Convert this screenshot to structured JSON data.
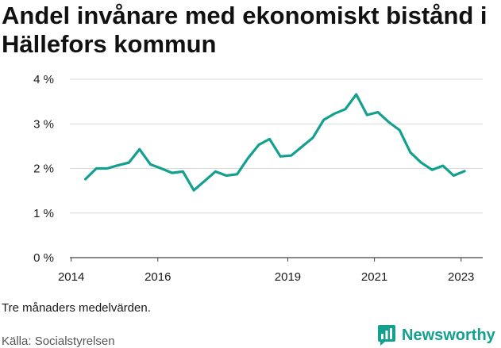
{
  "title": "Andel invånare med ekonomiskt bistånd i Hällefors kommun",
  "note": "Tre månaders medelvärden.",
  "source": "Källa: Socialstyrelsen",
  "brand": {
    "name": "Newsworthy",
    "color": "#13a08e"
  },
  "chart_data": {
    "type": "line",
    "title": "Andel invånare med ekonomiskt bistånd i Hällefors kommun",
    "xlabel": "",
    "ylabel": "",
    "ylim": [
      0,
      4
    ],
    "xlim": [
      2013.97,
      2023.5
    ],
    "y_ticks": [
      0,
      1,
      2,
      3,
      4
    ],
    "y_tick_labels": [
      "0 %",
      "1 %",
      "2 %",
      "3 %",
      "4 %"
    ],
    "x_ticks": [
      2014,
      2016,
      2019,
      2021,
      2023
    ],
    "x_tick_labels": [
      "2014",
      "2016",
      "2019",
      "2021",
      "2023"
    ],
    "grid": true,
    "line_color": "#13a08e",
    "x": [
      2014.33,
      2014.58,
      2014.83,
      2015.08,
      2015.33,
      2015.58,
      2015.83,
      2016.08,
      2016.33,
      2016.58,
      2016.83,
      2017.08,
      2017.33,
      2017.58,
      2017.83,
      2018.08,
      2018.33,
      2018.58,
      2018.83,
      2019.08,
      2019.33,
      2019.58,
      2019.83,
      2020.08,
      2020.33,
      2020.58,
      2020.83,
      2021.08,
      2021.33,
      2021.58,
      2021.83,
      2022.08,
      2022.33,
      2022.58,
      2022.83,
      2023.08
    ],
    "y": [
      1.76,
      2.0,
      2.0,
      2.07,
      2.13,
      2.43,
      2.09,
      2.0,
      1.9,
      1.93,
      1.51,
      1.72,
      1.93,
      1.84,
      1.87,
      2.23,
      2.53,
      2.66,
      2.27,
      2.29,
      2.49,
      2.69,
      3.09,
      3.23,
      3.33,
      3.66,
      3.2,
      3.26,
      3.04,
      2.86,
      2.36,
      2.13,
      1.97,
      2.06,
      1.84,
      1.94
    ]
  }
}
